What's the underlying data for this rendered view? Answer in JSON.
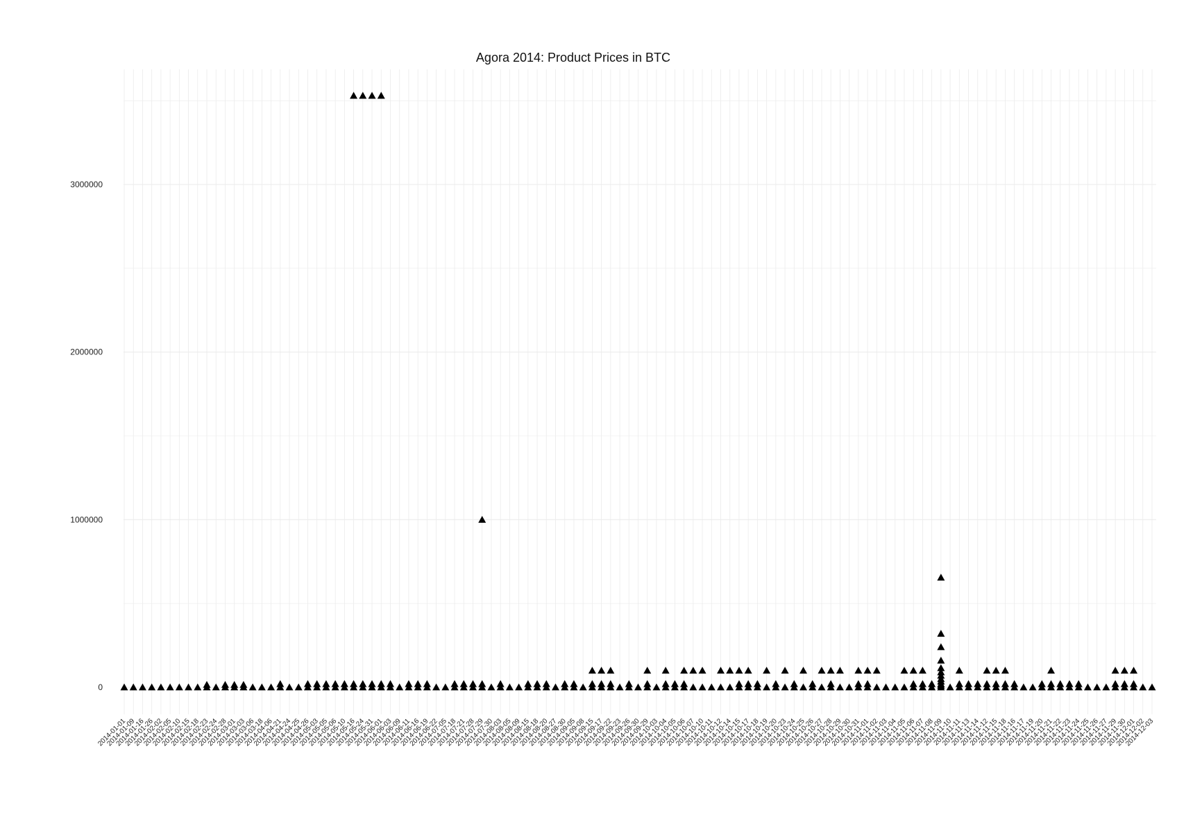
{
  "chart_data": {
    "type": "scatter",
    "title": "Agora 2014: Product Prices in BTC",
    "xlabel": "",
    "ylabel": "",
    "marker": "triangle",
    "marker_color": "#000000",
    "grid": true,
    "grid_color": "#ebebeb",
    "ylim": [
      -160000,
      3700000
    ],
    "yticks": [
      0,
      1000000,
      2000000,
      3000000
    ],
    "ytick_labels": [
      "0",
      "1000000",
      "2000000",
      "3000000"
    ],
    "categories": [
      "2014-01-01",
      "2014-01-09",
      "2014-01-16",
      "2014-01-26",
      "2014-02-02",
      "2014-02-05",
      "2014-02-10",
      "2014-02-15",
      "2014-02-18",
      "2014-02-23",
      "2014-02-24",
      "2014-02-28",
      "2014-03-01",
      "2014-03-03",
      "2014-03-06",
      "2014-03-18",
      "2014-04-06",
      "2014-04-21",
      "2014-04-24",
      "2014-04-25",
      "2014-04-26",
      "2014-05-03",
      "2014-05-05",
      "2014-05-06",
      "2014-05-10",
      "2014-05-16",
      "2014-05-24",
      "2014-05-31",
      "2014-06-01",
      "2014-06-03",
      "2014-06-09",
      "2014-06-11",
      "2014-06-16",
      "2014-06-19",
      "2014-06-22",
      "2014-07-05",
      "2014-07-18",
      "2014-07-21",
      "2014-07-28",
      "2014-07-29",
      "2014-07-30",
      "2014-08-03",
      "2014-08-05",
      "2014-08-09",
      "2014-08-15",
      "2014-08-18",
      "2014-08-20",
      "2014-08-27",
      "2014-08-30",
      "2014-09-05",
      "2014-09-08",
      "2014-09-15",
      "2014-09-17",
      "2014-09-22",
      "2014-09-23",
      "2014-09-26",
      "2014-09-30",
      "2014-09-29",
      "2014-10-03",
      "2014-10-04",
      "2014-10-05",
      "2014-10-06",
      "2014-10-07",
      "2014-10-10",
      "2014-10-11",
      "2014-10-12",
      "2014-10-14",
      "2014-10-15",
      "2014-10-17",
      "2014-10-18",
      "2014-10-19",
      "2014-10-20",
      "2014-10-23",
      "2014-10-24",
      "2014-10-25",
      "2014-10-26",
      "2014-10-27",
      "2014-10-28",
      "2014-10-29",
      "2014-10-30",
      "2014-10-31",
      "2014-11-01",
      "2014-11-02",
      "2014-11-03",
      "2014-11-04",
      "2014-11-05",
      "2014-11-06",
      "2014-11-07",
      "2014-11-08",
      "2014-11-09",
      "2014-11-10",
      "2014-11-11",
      "2014-11-13",
      "2014-11-14",
      "2014-11-12",
      "2014-11-15",
      "2014-11-18",
      "2014-11-16",
      "2014-11-17",
      "2014-11-19",
      "2014-11-20",
      "2014-11-21",
      "2014-11-22",
      "2014-11-23",
      "2014-11-24",
      "2014-11-25",
      "2014-11-26",
      "2014-11-27",
      "2014-11-29",
      "2014-11-30",
      "2014-12-01",
      "2014-12-02",
      "2014-12-03"
    ],
    "x_tick_labels": [
      "2014-01-01",
      "2014-01-09",
      "2014-01-16",
      "2014-01-26",
      "2014-02-02",
      "2014-02-05",
      "2014-02-10",
      "2014-02-15",
      "2014-02-18",
      "2014-02-23",
      "2014-02-24",
      "2014-02-28",
      "2014-03-01",
      "2014-03-03",
      "2014-03-06",
      "2014-03-18",
      "2014-04-06",
      "2014-04-21",
      "2014-04-24",
      "2014-04-25",
      "2014-04-26",
      "2014-05-03",
      "2014-05-05",
      "2014-05-06",
      "2014-05-10",
      "2014-05-16",
      "2014-05-24",
      "2014-05-31",
      "2014-06-01",
      "2014-06-03",
      "2014-06-09",
      "2014-06-11",
      "2014-06-16",
      "2014-06-19",
      "2014-06-22",
      "2014-07-05",
      "2014-07-18",
      "2014-07-21",
      "2014-07-28",
      "2014-07-29",
      "2014-07-30",
      "2014-08-03",
      "2014-08-05",
      "2014-08-09",
      "2014-08-15",
      "2014-08-18",
      "2014-08-20",
      "2014-08-27",
      "2014-08-30",
      "2014-09-05",
      "2014-09-08",
      "2014-09-15",
      "2014-09-17",
      "2014-09-22",
      "2014-09-23",
      "2014-09-26",
      "2014-09-30",
      "2014-09-29",
      "2014-10-03",
      "2014-10-04",
      "2014-10-05",
      "2014-10-06",
      "2014-10-07",
      "2014-10-10",
      "2014-10-11",
      "2014-10-12",
      "2014-10-14",
      "2014-10-15",
      "2014-10-17",
      "2014-10-18",
      "2014-10-19",
      "2014-10-20",
      "2014-10-23",
      "2014-10-24",
      "2014-10-25",
      "2014-10-26",
      "2014-10-27",
      "2014-10-28",
      "2014-10-29",
      "2014-10-30",
      "2014-10-31",
      "2014-11-01",
      "2014-11-02",
      "2014-11-03",
      "2014-11-04",
      "2014-11-05",
      "2014-11-06",
      "2014-11-07",
      "2014-11-08",
      "2014-11-09",
      "2014-11-10",
      "2014-11-11",
      "2014-11-13",
      "2014-11-14",
      "2014-11-12",
      "2014-11-15",
      "2014-11-18",
      "2014-11-16",
      "2014-11-17",
      "2014-11-19",
      "2014-11-20",
      "2014-11-21",
      "2014-11-22",
      "2014-11-23",
      "2014-11-24",
      "2014-11-25",
      "2014-11-26",
      "2014-11-27",
      "2014-11-29",
      "2014-11-30",
      "2014-12-01",
      "2014-12-02",
      "2014-12-03"
    ],
    "points": [
      {
        "x": "2014-01-01",
        "y": [
          0
        ]
      },
      {
        "x": "2014-01-09",
        "y": [
          0
        ]
      },
      {
        "x": "2014-01-16",
        "y": [
          0
        ]
      },
      {
        "x": "2014-01-26",
        "y": [
          0
        ]
      },
      {
        "x": "2014-02-02",
        "y": [
          0
        ]
      },
      {
        "x": "2014-02-05",
        "y": [
          0
        ]
      },
      {
        "x": "2014-02-10",
        "y": [
          0
        ]
      },
      {
        "x": "2014-02-15",
        "y": [
          0
        ]
      },
      {
        "x": "2014-02-18",
        "y": [
          0
        ]
      },
      {
        "x": "2014-02-23",
        "y": [
          0,
          15000
        ]
      },
      {
        "x": "2014-02-24",
        "y": [
          0
        ]
      },
      {
        "x": "2014-02-28",
        "y": [
          0,
          15000
        ]
      },
      {
        "x": "2014-03-01",
        "y": [
          0,
          15000
        ]
      },
      {
        "x": "2014-03-03",
        "y": [
          0,
          15000
        ]
      },
      {
        "x": "2014-03-06",
        "y": [
          0
        ]
      },
      {
        "x": "2014-03-18",
        "y": [
          0
        ]
      },
      {
        "x": "2014-04-06",
        "y": [
          0
        ]
      },
      {
        "x": "2014-04-21",
        "y": [
          0,
          20000
        ]
      },
      {
        "x": "2014-04-24",
        "y": [
          0
        ]
      },
      {
        "x": "2014-04-25",
        "y": [
          0
        ]
      },
      {
        "x": "2014-04-26",
        "y": [
          0,
          20000
        ]
      },
      {
        "x": "2014-05-03",
        "y": [
          0,
          20000
        ]
      },
      {
        "x": "2014-05-05",
        "y": [
          0,
          20000
        ]
      },
      {
        "x": "2014-05-06",
        "y": [
          0,
          20000
        ]
      },
      {
        "x": "2014-05-10",
        "y": [
          0,
          20000
        ]
      },
      {
        "x": "2014-05-16",
        "y": [
          0,
          20000,
          3530000
        ]
      },
      {
        "x": "2014-05-24",
        "y": [
          0,
          20000,
          3530000
        ]
      },
      {
        "x": "2014-05-31",
        "y": [
          0,
          20000,
          3530000
        ]
      },
      {
        "x": "2014-06-01",
        "y": [
          0,
          20000,
          3530000
        ]
      },
      {
        "x": "2014-06-03",
        "y": [
          0,
          20000
        ]
      },
      {
        "x": "2014-06-09",
        "y": [
          0
        ]
      },
      {
        "x": "2014-06-11",
        "y": [
          0,
          20000
        ]
      },
      {
        "x": "2014-06-16",
        "y": [
          0,
          20000
        ]
      },
      {
        "x": "2014-06-19",
        "y": [
          0,
          20000
        ]
      },
      {
        "x": "2014-06-22",
        "y": [
          0
        ]
      },
      {
        "x": "2014-07-05",
        "y": [
          0
        ]
      },
      {
        "x": "2014-07-18",
        "y": [
          0,
          20000
        ]
      },
      {
        "x": "2014-07-21",
        "y": [
          0,
          20000
        ]
      },
      {
        "x": "2014-07-28",
        "y": [
          0,
          20000
        ]
      },
      {
        "x": "2014-07-29",
        "y": [
          0,
          20000,
          1000000
        ]
      },
      {
        "x": "2014-07-30",
        "y": [
          0
        ]
      },
      {
        "x": "2014-08-03",
        "y": [
          0,
          20000
        ]
      },
      {
        "x": "2014-08-05",
        "y": [
          0
        ]
      },
      {
        "x": "2014-08-09",
        "y": [
          0
        ]
      },
      {
        "x": "2014-08-15",
        "y": [
          0,
          20000
        ]
      },
      {
        "x": "2014-08-18",
        "y": [
          0,
          20000
        ]
      },
      {
        "x": "2014-08-20",
        "y": [
          0,
          20000
        ]
      },
      {
        "x": "2014-08-27",
        "y": [
          0
        ]
      },
      {
        "x": "2014-08-30",
        "y": [
          0,
          20000
        ]
      },
      {
        "x": "2014-09-05",
        "y": [
          0,
          20000
        ]
      },
      {
        "x": "2014-09-08",
        "y": [
          0
        ]
      },
      {
        "x": "2014-09-15",
        "y": [
          0,
          20000,
          100000
        ]
      },
      {
        "x": "2014-09-17",
        "y": [
          0,
          20000,
          100000
        ]
      },
      {
        "x": "2014-09-22",
        "y": [
          0,
          20000,
          100000
        ]
      },
      {
        "x": "2014-09-23",
        "y": [
          0
        ]
      },
      {
        "x": "2014-09-26",
        "y": [
          0,
          20000
        ]
      },
      {
        "x": "2014-09-30",
        "y": [
          0
        ]
      },
      {
        "x": "2014-09-29",
        "y": [
          0,
          20000,
          100000
        ]
      },
      {
        "x": "2014-10-03",
        "y": [
          0
        ]
      },
      {
        "x": "2014-10-04",
        "y": [
          0,
          20000,
          100000
        ]
      },
      {
        "x": "2014-10-05",
        "y": [
          0,
          20000
        ]
      },
      {
        "x": "2014-10-06",
        "y": [
          0,
          20000,
          100000
        ]
      },
      {
        "x": "2014-10-07",
        "y": [
          0,
          100000
        ]
      },
      {
        "x": "2014-10-10",
        "y": [
          0,
          100000
        ]
      },
      {
        "x": "2014-10-11",
        "y": [
          0
        ]
      },
      {
        "x": "2014-10-12",
        "y": [
          0,
          100000
        ]
      },
      {
        "x": "2014-10-14",
        "y": [
          0,
          100000
        ]
      },
      {
        "x": "2014-10-15",
        "y": [
          0,
          20000,
          100000
        ]
      },
      {
        "x": "2014-10-17",
        "y": [
          0,
          20000,
          100000
        ]
      },
      {
        "x": "2014-10-18",
        "y": [
          0,
          20000
        ]
      },
      {
        "x": "2014-10-19",
        "y": [
          0,
          100000
        ]
      },
      {
        "x": "2014-10-20",
        "y": [
          0,
          20000
        ]
      },
      {
        "x": "2014-10-23",
        "y": [
          0,
          100000
        ]
      },
      {
        "x": "2014-10-24",
        "y": [
          0,
          20000
        ]
      },
      {
        "x": "2014-10-25",
        "y": [
          0,
          100000
        ]
      },
      {
        "x": "2014-10-26",
        "y": [
          0,
          20000
        ]
      },
      {
        "x": "2014-10-27",
        "y": [
          0,
          100000
        ]
      },
      {
        "x": "2014-10-28",
        "y": [
          0,
          20000,
          100000
        ]
      },
      {
        "x": "2014-10-29",
        "y": [
          0,
          100000
        ]
      },
      {
        "x": "2014-10-30",
        "y": [
          0
        ]
      },
      {
        "x": "2014-10-31",
        "y": [
          0,
          20000,
          100000
        ]
      },
      {
        "x": "2014-11-01",
        "y": [
          0,
          20000,
          100000
        ]
      },
      {
        "x": "2014-11-02",
        "y": [
          0,
          100000
        ]
      },
      {
        "x": "2014-11-03",
        "y": [
          0
        ]
      },
      {
        "x": "2014-11-04",
        "y": [
          0
        ]
      },
      {
        "x": "2014-11-05",
        "y": [
          0,
          100000
        ]
      },
      {
        "x": "2014-11-06",
        "y": [
          0,
          20000,
          100000
        ]
      },
      {
        "x": "2014-11-07",
        "y": [
          0,
          20000,
          100000
        ]
      },
      {
        "x": "2014-11-08",
        "y": [
          0,
          20000
        ]
      },
      {
        "x": "2014-11-09",
        "y": [
          0,
          10000,
          20000,
          35000,
          50000,
          70000,
          90000,
          115000,
          160000,
          240000,
          320000,
          655000
        ]
      },
      {
        "x": "2014-11-10",
        "y": [
          0
        ]
      },
      {
        "x": "2014-11-11",
        "y": [
          0,
          20000,
          100000
        ]
      },
      {
        "x": "2014-11-13",
        "y": [
          0,
          20000
        ]
      },
      {
        "x": "2014-11-14",
        "y": [
          0,
          20000
        ]
      },
      {
        "x": "2014-11-12",
        "y": [
          0,
          20000,
          100000
        ]
      },
      {
        "x": "2014-11-15",
        "y": [
          0,
          20000,
          100000
        ]
      },
      {
        "x": "2014-11-18",
        "y": [
          0,
          20000,
          100000
        ]
      },
      {
        "x": "2014-11-16",
        "y": [
          0,
          20000
        ]
      },
      {
        "x": "2014-11-17",
        "y": [
          0
        ]
      },
      {
        "x": "2014-11-19",
        "y": [
          0
        ]
      },
      {
        "x": "2014-11-20",
        "y": [
          0,
          20000
        ]
      },
      {
        "x": "2014-11-21",
        "y": [
          0,
          20000,
          100000
        ]
      },
      {
        "x": "2014-11-22",
        "y": [
          0,
          20000
        ]
      },
      {
        "x": "2014-11-23",
        "y": [
          0,
          20000
        ]
      },
      {
        "x": "2014-11-24",
        "y": [
          0,
          20000
        ]
      },
      {
        "x": "2014-11-25",
        "y": [
          0
        ]
      },
      {
        "x": "2014-11-26",
        "y": [
          0
        ]
      },
      {
        "x": "2014-11-27",
        "y": [
          0
        ]
      },
      {
        "x": "2014-11-29",
        "y": [
          0,
          20000,
          100000
        ]
      },
      {
        "x": "2014-11-30",
        "y": [
          0,
          20000,
          100000
        ]
      },
      {
        "x": "2014-12-01",
        "y": [
          0,
          20000,
          100000
        ]
      },
      {
        "x": "2014-12-02",
        "y": [
          0
        ]
      },
      {
        "x": "2014-12-03",
        "y": [
          0
        ]
      }
    ]
  }
}
